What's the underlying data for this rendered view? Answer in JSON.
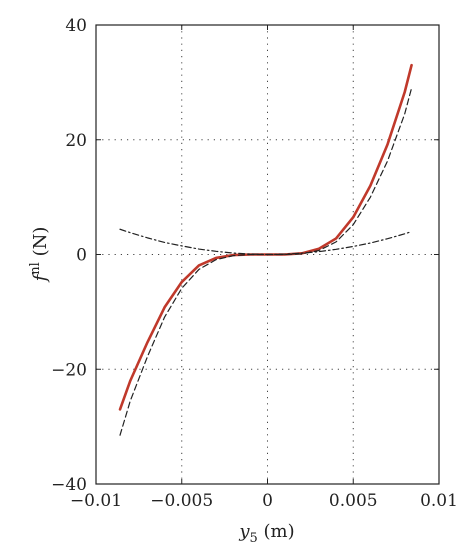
{
  "chart_data": {
    "type": "line",
    "title": "",
    "xlabel": {
      "base": "y",
      "sub": "5",
      "unit": " (m)"
    },
    "ylabel": {
      "base": "f",
      "sup": "nl",
      "unit": " (N)"
    },
    "xlim": [
      -0.01,
      0.01
    ],
    "ylim": [
      -40,
      40
    ],
    "xticks": [
      -0.01,
      -0.005,
      0,
      0.005,
      0.01
    ],
    "xtick_labels": [
      "−0.01",
      "−0.005",
      "0",
      "0.005",
      "0.01"
    ],
    "yticks": [
      -40,
      -20,
      0,
      20,
      40
    ],
    "ytick_labels": [
      "−40",
      "−20",
      "0",
      "20",
      "40"
    ],
    "grid": "dotted",
    "series": [
      {
        "style": "solid",
        "color": "#c0392b",
        "x": [
          -0.0086,
          -0.008,
          -0.007,
          -0.006,
          -0.005,
          -0.004,
          -0.003,
          -0.002,
          -0.001,
          0,
          0.001,
          0.002,
          0.003,
          0.004,
          0.005,
          0.006,
          0.007,
          0.008,
          0.0084
        ],
        "y": [
          -27,
          -22,
          -15.3,
          -9.2,
          -4.8,
          -1.9,
          -0.6,
          -0.1,
          0,
          0,
          0,
          0.2,
          1.0,
          2.8,
          6.5,
          12.0,
          19.2,
          28.3,
          33
        ]
      },
      {
        "style": "dashed",
        "color": "#222222",
        "x": [
          -0.0086,
          -0.008,
          -0.007,
          -0.006,
          -0.005,
          -0.004,
          -0.003,
          -0.002,
          -0.001,
          0,
          0.001,
          0.002,
          0.003,
          0.004,
          0.005,
          0.006,
          0.007,
          0.008,
          0.0084
        ],
        "y": [
          -31.5,
          -25.5,
          -17.8,
          -10.9,
          -5.9,
          -2.6,
          -0.9,
          -0.2,
          0,
          0,
          0,
          0.1,
          0.7,
          2.2,
          5.2,
          10.0,
          16.3,
          24.5,
          29
        ]
      },
      {
        "style": "dashdot",
        "color": "#222222",
        "x": [
          -0.0086,
          -0.008,
          -0.007,
          -0.006,
          -0.005,
          -0.004,
          -0.003,
          -0.002,
          -0.001,
          0,
          0.001,
          0.002,
          0.003,
          0.004,
          0.005,
          0.006,
          0.007,
          0.008,
          0.0084
        ],
        "y": [
          4.4,
          3.8,
          2.9,
          2.1,
          1.5,
          0.95,
          0.55,
          0.25,
          0.07,
          0,
          0.06,
          0.22,
          0.5,
          0.9,
          1.4,
          2.0,
          2.75,
          3.6,
          4.0
        ]
      }
    ]
  }
}
